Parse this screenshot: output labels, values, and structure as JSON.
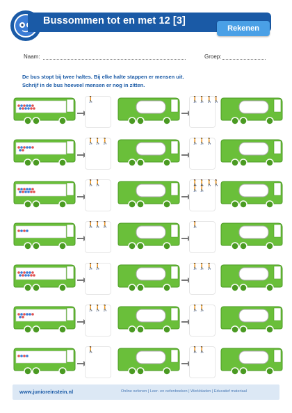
{
  "header": {
    "title": "Bussommen tot en met 12 [3]",
    "subject": "Rekenen",
    "logo_text_top": "JUNIOR",
    "logo_text_bottom": "EINSTEIN"
  },
  "fields": {
    "name_label": "Naam:",
    "group_label": "Groep:"
  },
  "instructions": {
    "line1": "De bus stopt bij twee haltes. Bij elke halte stappen er mensen uit.",
    "line2": "Schrijf in de bus hoeveel mensen er nog in zitten."
  },
  "rows": [
    {
      "start": 12,
      "stop1_off": 1,
      "stop2_off": 4
    },
    {
      "start": 8,
      "stop1_off": 3,
      "stop2_off": 3
    },
    {
      "start": 12,
      "stop1_off": 2,
      "stop2_off": 6
    },
    {
      "start": 4,
      "stop1_off": 3,
      "stop2_off": 1
    },
    {
      "start": 12,
      "stop1_off": 2,
      "stop2_off": 3
    },
    {
      "start": 8,
      "stop1_off": 3,
      "stop2_off": 2
    },
    {
      "start": 4,
      "stop1_off": 1,
      "stop2_off": 2
    }
  ],
  "footer": {
    "url": "www.junioreinstein.nl",
    "links": "Online oefenen | Leer- en oefenboeken | Werkbladen | Educatief materiaal"
  }
}
